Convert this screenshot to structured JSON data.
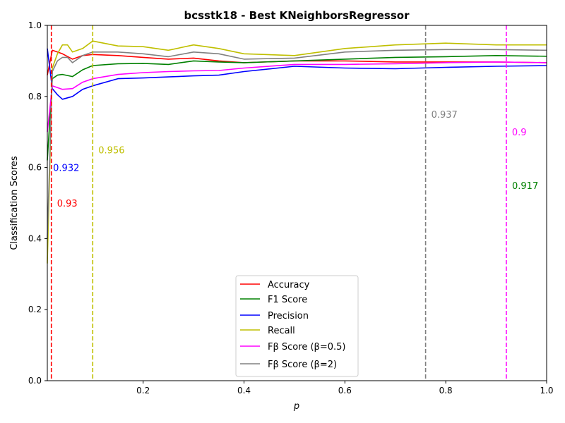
{
  "chart_data": {
    "type": "line",
    "title": "bcsstk18 - Best KNeighborsRegressor",
    "xlabel": "p",
    "ylabel": "Classification Scores",
    "xlim": [
      0.01,
      1.0
    ],
    "ylim": [
      0.0,
      1.0
    ],
    "xticks": [
      0.2,
      0.4,
      0.6,
      0.8,
      1.0
    ],
    "xtick_labels": [
      "0.2",
      "0.4",
      "0.6",
      "0.8",
      "1.0"
    ],
    "yticks": [
      0.0,
      0.2,
      0.4,
      0.6,
      0.8,
      1.0
    ],
    "ytick_labels": [
      "0.0",
      "0.2",
      "0.4",
      "0.6",
      "0.8",
      "1.0"
    ],
    "grid": false,
    "legend_position": "lower-center",
    "series": [
      {
        "name": "Accuracy",
        "color": "#ff0000",
        "x": [
          0.01,
          0.02,
          0.03,
          0.04,
          0.06,
          0.08,
          0.1,
          0.15,
          0.2,
          0.25,
          0.3,
          0.35,
          0.4,
          0.5,
          0.6,
          0.7,
          0.8,
          0.9,
          1.0
        ],
        "y": [
          0.86,
          0.93,
          0.925,
          0.92,
          0.905,
          0.915,
          0.918,
          0.915,
          0.91,
          0.905,
          0.908,
          0.9,
          0.895,
          0.9,
          0.9,
          0.897,
          0.897,
          0.897,
          0.895
        ]
      },
      {
        "name": "F1 Score",
        "color": "#008000",
        "x": [
          0.01,
          0.02,
          0.03,
          0.04,
          0.06,
          0.08,
          0.1,
          0.15,
          0.2,
          0.25,
          0.3,
          0.35,
          0.4,
          0.5,
          0.6,
          0.7,
          0.8,
          0.9,
          1.0
        ],
        "y": [
          0.62,
          0.85,
          0.86,
          0.862,
          0.856,
          0.875,
          0.887,
          0.892,
          0.893,
          0.89,
          0.9,
          0.897,
          0.895,
          0.9,
          0.905,
          0.91,
          0.912,
          0.915,
          0.913
        ]
      },
      {
        "name": "Precision",
        "color": "#0000ff",
        "x": [
          0.01,
          0.02,
          0.03,
          0.04,
          0.06,
          0.08,
          0.1,
          0.15,
          0.2,
          0.25,
          0.3,
          0.35,
          0.4,
          0.5,
          0.6,
          0.7,
          0.8,
          0.9,
          1.0
        ],
        "y": [
          0.935,
          0.822,
          0.805,
          0.792,
          0.8,
          0.82,
          0.83,
          0.85,
          0.852,
          0.855,
          0.858,
          0.86,
          0.87,
          0.885,
          0.88,
          0.878,
          0.882,
          0.885,
          0.887
        ]
      },
      {
        "name": "Recall",
        "color": "#bfbf00",
        "x": [
          0.01,
          0.02,
          0.03,
          0.04,
          0.05,
          0.06,
          0.08,
          0.1,
          0.15,
          0.2,
          0.25,
          0.3,
          0.35,
          0.4,
          0.5,
          0.6,
          0.7,
          0.8,
          0.9,
          1.0
        ],
        "y": [
          0.33,
          0.88,
          0.92,
          0.945,
          0.945,
          0.925,
          0.935,
          0.956,
          0.942,
          0.94,
          0.93,
          0.945,
          0.935,
          0.92,
          0.915,
          0.935,
          0.945,
          0.95,
          0.945,
          0.945
        ]
      },
      {
        "name": "Fβ Score (β=0.5)",
        "color": "#ff00ff",
        "x": [
          0.01,
          0.02,
          0.03,
          0.04,
          0.06,
          0.08,
          0.1,
          0.15,
          0.2,
          0.25,
          0.3,
          0.35,
          0.4,
          0.5,
          0.6,
          0.7,
          0.8,
          0.9,
          1.0
        ],
        "y": [
          0.7,
          0.83,
          0.825,
          0.82,
          0.822,
          0.84,
          0.85,
          0.862,
          0.867,
          0.87,
          0.872,
          0.873,
          0.88,
          0.89,
          0.89,
          0.892,
          0.895,
          0.897,
          0.895
        ]
      },
      {
        "name": "Fβ Score (β=2)",
        "color": "#808080",
        "x": [
          0.01,
          0.02,
          0.03,
          0.04,
          0.05,
          0.06,
          0.08,
          0.1,
          0.15,
          0.2,
          0.25,
          0.3,
          0.35,
          0.4,
          0.5,
          0.6,
          0.7,
          0.8,
          0.9,
          1.0
        ],
        "y": [
          0.4,
          0.87,
          0.9,
          0.91,
          0.91,
          0.895,
          0.915,
          0.925,
          0.925,
          0.92,
          0.912,
          0.925,
          0.92,
          0.905,
          0.908,
          0.925,
          0.93,
          0.932,
          0.932,
          0.93
        ]
      }
    ],
    "vlines": [
      {
        "x": 0.018,
        "color": "#ff0000",
        "label": "0.93",
        "label_y": 0.5
      },
      {
        "x": 0.1,
        "color": "#bfbf00",
        "label": "0.956",
        "label_y": 0.65
      },
      {
        "x": 0.76,
        "color": "#808080",
        "label": "0.937",
        "label_y": 0.75
      },
      {
        "x": 0.92,
        "color": "#ff00ff",
        "label": "0.9",
        "label_y": 0.7
      }
    ],
    "annotations": [
      {
        "text": "0.932",
        "x": 0.02,
        "y": 0.6,
        "color": "#0000ff"
      },
      {
        "text": "0.917",
        "x": 0.93,
        "y": 0.55,
        "color": "#008000"
      }
    ]
  }
}
